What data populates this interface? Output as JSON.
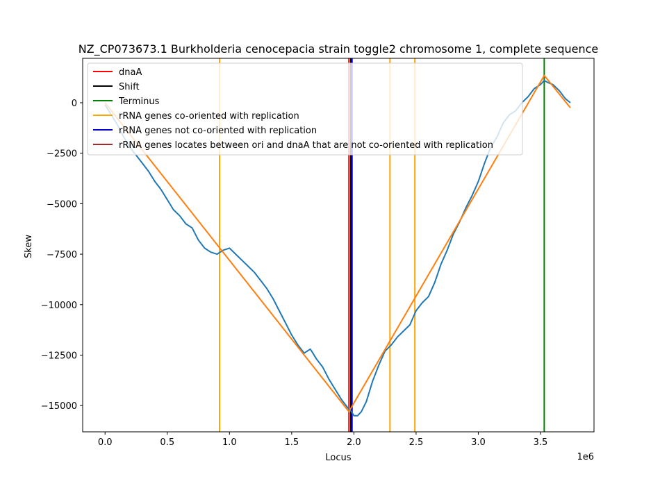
{
  "chart_data": {
    "type": "line",
    "title": "NZ_CP073673.1 Burkholderia cenocepacia strain toggle2 chromosome 1, complete sequence",
    "xlabel": "Locus",
    "ylabel": "Skew",
    "x_multiplier_label": "1e6",
    "xlim": [
      -180000,
      3930000
    ],
    "ylim": [
      -16300,
      2200
    ],
    "x_ticks": [
      0,
      500000,
      1000000,
      1500000,
      2000000,
      2500000,
      3000000,
      3500000
    ],
    "x_tick_labels": [
      "0.0",
      "0.5",
      "1.0",
      "1.5",
      "2.0",
      "2.5",
      "3.0",
      "3.5"
    ],
    "y_ticks": [
      0,
      -2500,
      -5000,
      -7500,
      -10000,
      -12500,
      -15000
    ],
    "y_tick_labels": [
      "0",
      "−2500",
      "−5000",
      "−7500",
      "−10000",
      "−12500",
      "−15000"
    ],
    "grid": false,
    "legend_position": "top-left",
    "legend": [
      {
        "label": "dnaA",
        "color": "#ff0000"
      },
      {
        "label": "Shift",
        "color": "#000000"
      },
      {
        "label": "Terminus",
        "color": "#008000"
      },
      {
        "label": "rRNA genes co-oriented with replication",
        "color": "#ffa500"
      },
      {
        "label": "rRNA genes not co-oriented with replication",
        "color": "#0000cd"
      },
      {
        "label": "rRNA genes locates between ori and dnaA that are not co-oriented with replication",
        "color": "#a52a2a"
      }
    ],
    "series": [
      {
        "color": "#1f77b4",
        "x": [
          0,
          50000,
          100000,
          150000,
          200000,
          250000,
          300000,
          350000,
          400000,
          450000,
          500000,
          550000,
          600000,
          650000,
          700000,
          750000,
          800000,
          850000,
          900000,
          950000,
          1000000,
          1050000,
          1100000,
          1150000,
          1200000,
          1250000,
          1300000,
          1350000,
          1400000,
          1450000,
          1500000,
          1550000,
          1600000,
          1650000,
          1700000,
          1750000,
          1800000,
          1850000,
          1900000,
          1950000,
          1980000,
          2000000,
          2030000,
          2060000,
          2100000,
          2150000,
          2200000,
          2250000,
          2300000,
          2350000,
          2400000,
          2450000,
          2500000,
          2550000,
          2600000,
          2650000,
          2700000,
          2750000,
          2800000,
          2850000,
          2900000,
          2950000,
          3000000,
          3050000,
          3100000,
          3150000,
          3200000,
          3250000,
          3300000,
          3350000,
          3400000,
          3450000,
          3500000,
          3530000,
          3560000,
          3600000,
          3650000,
          3700000,
          3740000
        ],
        "y": [
          -100,
          -600,
          -1100,
          -1700,
          -2200,
          -2600,
          -3000,
          -3400,
          -3900,
          -4300,
          -4800,
          -5300,
          -5600,
          -6000,
          -6200,
          -6800,
          -7200,
          -7400,
          -7500,
          -7300,
          -7200,
          -7500,
          -7800,
          -8100,
          -8400,
          -8800,
          -9200,
          -9700,
          -10300,
          -10900,
          -11500,
          -12000,
          -12400,
          -12200,
          -12700,
          -13100,
          -13700,
          -14200,
          -14700,
          -15100,
          -15300,
          -15500,
          -15500,
          -15300,
          -14800,
          -13800,
          -13000,
          -12300,
          -12000,
          -11600,
          -11300,
          -11000,
          -10300,
          -9900,
          -9600,
          -8900,
          -8000,
          -7300,
          -6500,
          -5900,
          -5200,
          -4600,
          -3900,
          -3000,
          -2200,
          -1700,
          -1000,
          -600,
          -400,
          0,
          300,
          700,
          900,
          1100,
          1000,
          900,
          600,
          200,
          0
        ]
      },
      {
        "color": "#ff7f0e",
        "x": [
          0,
          1960000,
          3530000,
          3740000
        ],
        "y": [
          0,
          -15300,
          1350,
          -250
        ]
      }
    ],
    "vlines": [
      {
        "x": 920000,
        "color": "#ffa500"
      },
      {
        "x": 1960000,
        "color": "#ff0000"
      },
      {
        "x": 1975000,
        "color": "#000000"
      },
      {
        "x": 1985000,
        "color": "#0000cd"
      },
      {
        "x": 2290000,
        "color": "#ffa500"
      },
      {
        "x": 2490000,
        "color": "#ffa500"
      },
      {
        "x": 3530000,
        "color": "#008000"
      }
    ]
  }
}
